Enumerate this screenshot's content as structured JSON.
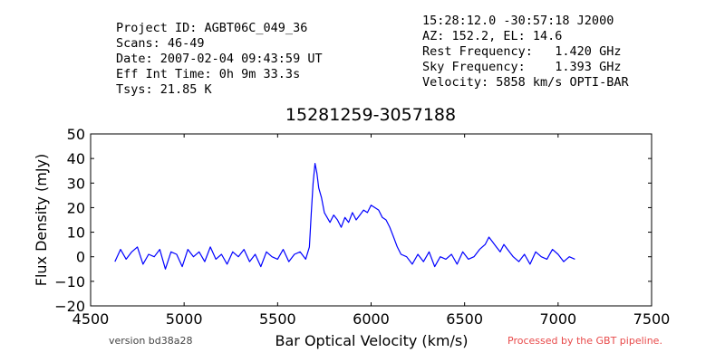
{
  "header_left": {
    "project": "Project ID: AGBT06C_049_36",
    "scans": "Scans: 46-49",
    "date": "Date: 2007-02-04 09:43:59 UT",
    "int_time": "Eff Int Time: 0h 9m 33.3s",
    "tsys": "Tsys: 21.85 K"
  },
  "header_right": {
    "coords": "15:28:12.0 -30:57:18 J2000",
    "azel": "AZ: 152.2, EL: 14.6",
    "rest_freq": "Rest Frequency:   1.420 GHz",
    "sky_freq": "Sky Frequency:    1.393 GHz",
    "velocity": "Velocity: 5858 km/s OPTI-BAR"
  },
  "footer": {
    "version": "version bd38a28",
    "processed": "Processed by the GBT pipeline.",
    "processed_color": "#e84a4a"
  },
  "chart_data": {
    "type": "line",
    "title": "15281259-3057188",
    "xlabel": "Bar Optical Velocity (km/s)",
    "ylabel": "Flux Density (mJy)",
    "xlim": [
      4500,
      7500
    ],
    "ylim": [
      -20,
      50
    ],
    "xticks": [
      4500,
      5000,
      5500,
      6000,
      6500,
      7000,
      7500
    ],
    "yticks": [
      -20,
      -10,
      0,
      10,
      20,
      30,
      40,
      50
    ],
    "xtick_labels": [
      "4500",
      "5000",
      "5500",
      "6000",
      "6500",
      "7000",
      "7500"
    ],
    "ytick_labels": [
      "−20",
      "−10",
      "0",
      "10",
      "20",
      "30",
      "40",
      "50"
    ],
    "grid": false,
    "line_color": "#0000ff",
    "series": [
      {
        "x": [
          4630,
          4660,
          4690,
          4720,
          4750,
          4780,
          4810,
          4840,
          4870,
          4900,
          4930,
          4960,
          4990,
          5020,
          5050,
          5080,
          5110,
          5140,
          5170,
          5200,
          5230,
          5260,
          5290,
          5320,
          5350,
          5380,
          5410,
          5440,
          5470,
          5500,
          5530,
          5560,
          5590,
          5620,
          5650,
          5670,
          5680,
          5690,
          5700,
          5710,
          5720,
          5735,
          5750,
          5765,
          5780,
          5800,
          5820,
          5840,
          5860,
          5880,
          5900,
          5920,
          5940,
          5960,
          5980,
          6000,
          6020,
          6040,
          6060,
          6080,
          6100,
          6120,
          6140,
          6160,
          6190,
          6220,
          6250,
          6280,
          6310,
          6340,
          6370,
          6400,
          6430,
          6460,
          6490,
          6520,
          6550,
          6580,
          6610,
          6630,
          6650,
          6670,
          6690,
          6710,
          6730,
          6760,
          6790,
          6820,
          6850,
          6880,
          6910,
          6940,
          6970,
          7000,
          7030,
          7060,
          7090
        ],
        "y": [
          -2,
          3,
          -1,
          2,
          4,
          -3,
          1,
          0,
          3,
          -5,
          2,
          1,
          -4,
          3,
          0,
          2,
          -2,
          4,
          -1,
          1,
          -3,
          2,
          0,
          3,
          -2,
          1,
          -4,
          2,
          0,
          -1,
          3,
          -2,
          1,
          2,
          -1,
          4,
          18,
          30,
          38,
          34,
          28,
          24,
          18,
          16,
          14,
          17,
          15,
          12,
          16,
          14,
          18,
          15,
          17,
          19,
          18,
          21,
          20,
          19,
          16,
          15,
          12,
          8,
          4,
          1,
          0,
          -3,
          1,
          -2,
          2,
          -4,
          0,
          -1,
          1,
          -3,
          2,
          -1,
          0,
          3,
          5,
          8,
          6,
          4,
          2,
          5,
          3,
          0,
          -2,
          1,
          -3,
          2,
          0,
          -1,
          3,
          1,
          -2,
          0,
          -1
        ]
      }
    ]
  }
}
